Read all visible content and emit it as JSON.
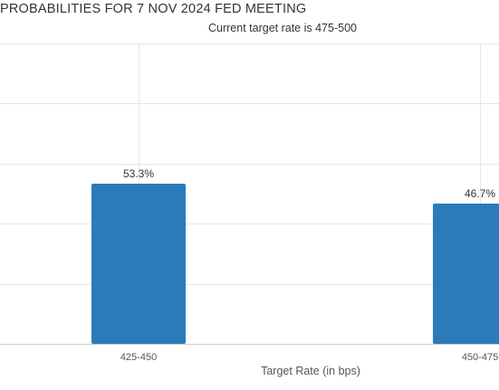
{
  "title": "PROBABILITIES FOR 7 NOV 2024 FED MEETING",
  "subtitle": "Current target rate is 475-500",
  "colors": {
    "bar": "#2b7bb9",
    "grid": "#e6e6e6",
    "axis": "#cccccc"
  },
  "chart_data": {
    "type": "bar",
    "title": "PROBABILITIES FOR 7 NOV 2024 FED MEETING",
    "subtitle": "Current target rate is 475-500",
    "xlabel": "Target Rate (in bps)",
    "ylabel": "",
    "categories": [
      "425-450",
      "450-475"
    ],
    "values": [
      53.3,
      46.7
    ],
    "data_labels": [
      "53.3%",
      "46.7%"
    ],
    "ylim": [
      0,
      100
    ],
    "grid": true,
    "legend": "none"
  }
}
